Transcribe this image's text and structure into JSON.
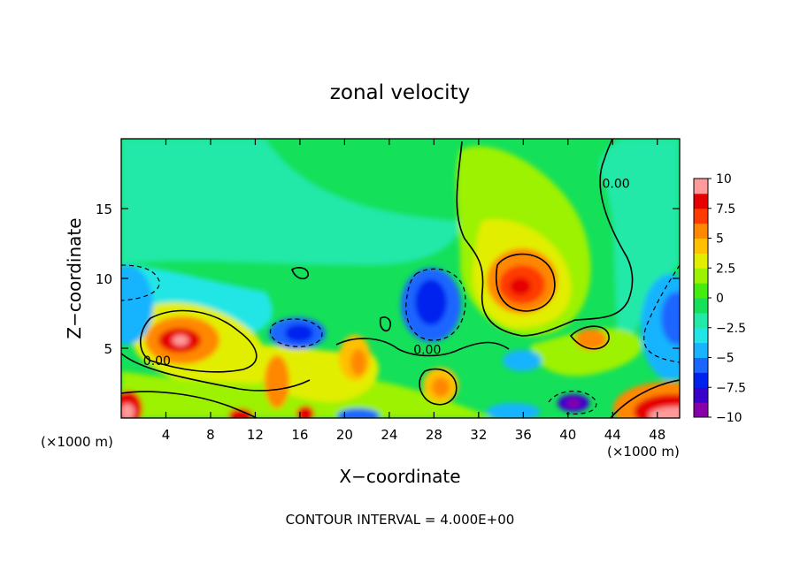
{
  "chart_data": {
    "type": "heatmap",
    "title": "zonal velocity",
    "xlabel": "X−coordinate",
    "ylabel": "Z−coordinate",
    "x_unit_left": "(×1000 m)",
    "x_unit_right": "(×1000 m)",
    "xlim": [
      0,
      50
    ],
    "ylim": [
      0,
      20
    ],
    "xticks": [
      4,
      8,
      12,
      16,
      20,
      24,
      28,
      32,
      36,
      40,
      44,
      48
    ],
    "yticks": [
      5,
      10,
      15
    ],
    "colorbar": {
      "ticks": [
        "10",
        "7.5",
        "5",
        "2.5",
        "0",
        "−2.5",
        "−5",
        "−7.5",
        "−10"
      ],
      "range": [
        -10,
        10
      ],
      "colors": [
        "#8800aa",
        "#3a00cc",
        "#0022ee",
        "#1a66ff",
        "#19b4ff",
        "#22e6e6",
        "#22e8a8",
        "#14e05a",
        "#44ec10",
        "#9cf200",
        "#e2ee00",
        "#ffc000",
        "#ff8800",
        "#ff3b00",
        "#e60000",
        "#ff9a9a"
      ]
    },
    "contour_labels": [
      {
        "text": "0.00",
        "x": 3.2,
        "y": 3.8
      },
      {
        "text": "0.00",
        "x": 27.4,
        "y": 4.6
      },
      {
        "text": "0.00",
        "x": 44.3,
        "y": 16.5
      }
    ],
    "features": [
      {
        "kind": "max",
        "x": 5.5,
        "z": 5.5,
        "value": 7.5
      },
      {
        "kind": "max",
        "x": 35.0,
        "z": 9.8,
        "value": 7.0
      },
      {
        "kind": "max",
        "x": 14.2,
        "z": 2.3,
        "value": 4.5
      },
      {
        "kind": "max",
        "x": 20.8,
        "z": 3.9,
        "value": 4.0
      },
      {
        "kind": "max",
        "x": 28.8,
        "z": 2.3,
        "value": 4.2
      },
      {
        "kind": "max",
        "x": 42.8,
        "z": 5.6,
        "value": 4.0
      },
      {
        "kind": "max",
        "x": 48.8,
        "z": 1.2,
        "value": 9.0
      },
      {
        "kind": "max",
        "x": 0.3,
        "z": 0.7,
        "value": 9.0
      },
      {
        "kind": "min",
        "x": 28.5,
        "z": 8.2,
        "value": -6.5
      },
      {
        "kind": "min",
        "x": 15.6,
        "z": 6.0,
        "value": -6.5
      },
      {
        "kind": "min",
        "x": 40.0,
        "z": 1.2,
        "value": -9.5
      },
      {
        "kind": "min",
        "x": 48.5,
        "z": 6.8,
        "value": -5.5
      },
      {
        "kind": "min",
        "x": 0.8,
        "z": 7.8,
        "value": -4.5
      },
      {
        "kind": "min",
        "x": 21.2,
        "z": 0.3,
        "value": -6.0
      }
    ]
  },
  "footer": {
    "contour_interval": "CONTOUR INTERVAL = 4.000E+00"
  }
}
